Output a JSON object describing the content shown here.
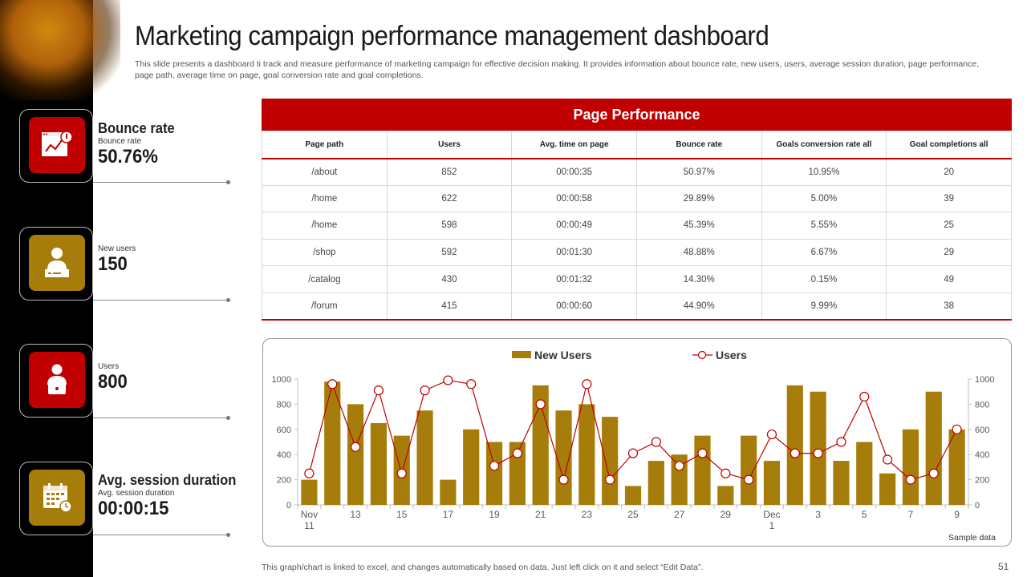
{
  "title": "Marketing campaign performance management dashboard",
  "subtitle": "This slide presents a dashboard ti track and measure performance of marketing campaign for effective decision making. It provides information about bounce rate, new users, users, average session duration, page performance, page path, average time on page, goal conversion rate and goal completions.",
  "kpis": [
    {
      "name": "Bounce rate",
      "sub": "Bounce rate",
      "value": "50.76%",
      "icon": "bounce-chart-icon",
      "color": "#c00000"
    },
    {
      "name": "",
      "sub": "New users",
      "value": "150",
      "icon": "new-user-icon",
      "color": "#a67d0a"
    },
    {
      "name": "",
      "sub": "Users",
      "value": "800",
      "icon": "user-laptop-icon",
      "color": "#c00000"
    },
    {
      "name": "Avg. session duration",
      "sub": "Avg. session duration",
      "value": "00:00:15",
      "icon": "calendar-clock-icon",
      "color": "#a67d0a"
    }
  ],
  "table": {
    "title": "Page Performance",
    "headers": [
      "Page path",
      "Users",
      "Avg. time on page",
      "Bounce rate",
      "Goals conversion rate all",
      "Goal completions all"
    ],
    "rows": [
      [
        "/about",
        "852",
        "00:00:35",
        "50.97%",
        "10.95%",
        "20"
      ],
      [
        "/home",
        "622",
        "00:00:58",
        "29.89%",
        "5.00%",
        "39"
      ],
      [
        "/home",
        "598",
        "00:00:49",
        "45.39%",
        "5.55%",
        "25"
      ],
      [
        "/shop",
        "592",
        "00:01:30",
        "48.88%",
        "6.67%",
        "29"
      ],
      [
        "/catalog",
        "430",
        "00:01:32",
        "14.30%",
        "0.15%",
        "49"
      ],
      [
        "/forum",
        "415",
        "00:00:60",
        "44.90%",
        "9.99%",
        "38"
      ]
    ]
  },
  "chart_data": {
    "type": "bar",
    "title": "",
    "legend": [
      "New Users",
      "Users"
    ],
    "categories": [
      "Nov 11",
      "12",
      "13",
      "14",
      "15",
      "16",
      "17",
      "18",
      "19",
      "20",
      "21",
      "22",
      "23",
      "24",
      "25",
      "26",
      "27",
      "28",
      "29",
      "30",
      "Dec 1",
      "2",
      "3",
      "4",
      "5",
      "6",
      "7",
      "8",
      "9"
    ],
    "tick_labels": [
      "Nov\n11",
      "13",
      "15",
      "17",
      "19",
      "21",
      "23",
      "25",
      "27",
      "29",
      "Dec\n1",
      "3",
      "5",
      "7",
      "9"
    ],
    "series": [
      {
        "name": "New Users",
        "kind": "bar",
        "color": "#a67d0a",
        "values": [
          200,
          980,
          800,
          650,
          550,
          750,
          200,
          600,
          500,
          500,
          950,
          750,
          800,
          700,
          150,
          350,
          400,
          550,
          150,
          550,
          350,
          950,
          900,
          350,
          500,
          250,
          600,
          900,
          600
        ]
      },
      {
        "name": "Users",
        "kind": "line",
        "color": "#c00000",
        "values": [
          250,
          960,
          460,
          910,
          250,
          910,
          990,
          960,
          310,
          410,
          800,
          200,
          960,
          200,
          410,
          500,
          310,
          410,
          250,
          200,
          560,
          410,
          410,
          500,
          860,
          360,
          200,
          250,
          600
        ]
      }
    ],
    "ylim": [
      0,
      1000
    ],
    "yticks": [
      0,
      200,
      400,
      600,
      800,
      1000
    ],
    "annotation": "Sample data"
  },
  "footer_note": "This graph/chart is linked to excel,  and changes automatically based on data. Just left click on it and select “Edit Data”.",
  "page_number": "51"
}
